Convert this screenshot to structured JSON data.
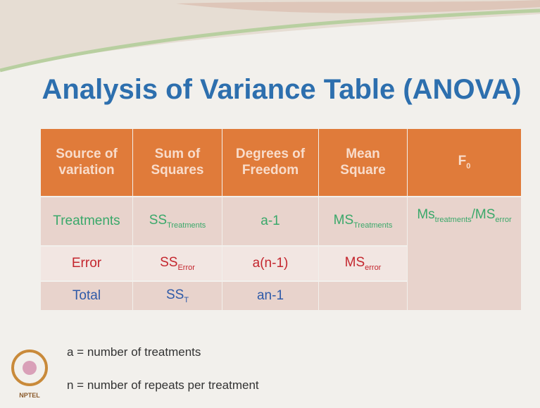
{
  "title": "Analysis of Variance Table (ANOVA)",
  "table": {
    "header": [
      [
        {
          "text": "Source of variation"
        }
      ],
      [
        {
          "text": "Sum of Squares"
        }
      ],
      [
        {
          "text": "Degrees of Freedom"
        }
      ],
      [
        {
          "text": "Mean Square"
        }
      ],
      [
        {
          "text": "F",
          "sub": "0"
        }
      ]
    ],
    "rows": [
      {
        "color": "#3aa86a",
        "cells": [
          [
            {
              "text": "Treatments"
            }
          ],
          [
            {
              "text": "SS",
              "sub": "Treatments"
            }
          ],
          [
            {
              "text": "a-1"
            }
          ],
          [
            {
              "text": "MS",
              "sub": "Treatments"
            }
          ],
          [
            {
              "text": "Ms",
              "sub": "treatments"
            },
            {
              "text": "/"
            },
            {
              "text": "MS",
              "sub": "error"
            }
          ]
        ]
      },
      {
        "color": "#c4262e",
        "cells": [
          [
            {
              "text": "Error"
            }
          ],
          [
            {
              "text": "SS",
              "sub": "Error"
            }
          ],
          [
            {
              "text": "a(n-1)"
            }
          ],
          [
            {
              "text": "MS",
              "sub": "error"
            }
          ]
        ]
      },
      {
        "color": "#2e5aa8",
        "cells": [
          [
            {
              "text": "Total"
            }
          ],
          [
            {
              "text": "SS",
              "sub": "T"
            }
          ],
          [
            {
              "text": "an-1"
            }
          ]
        ]
      }
    ]
  },
  "notes": [
    "a = number of treatments",
    "n = number of repeats per treatment"
  ],
  "logo_text": "NPTEL"
}
